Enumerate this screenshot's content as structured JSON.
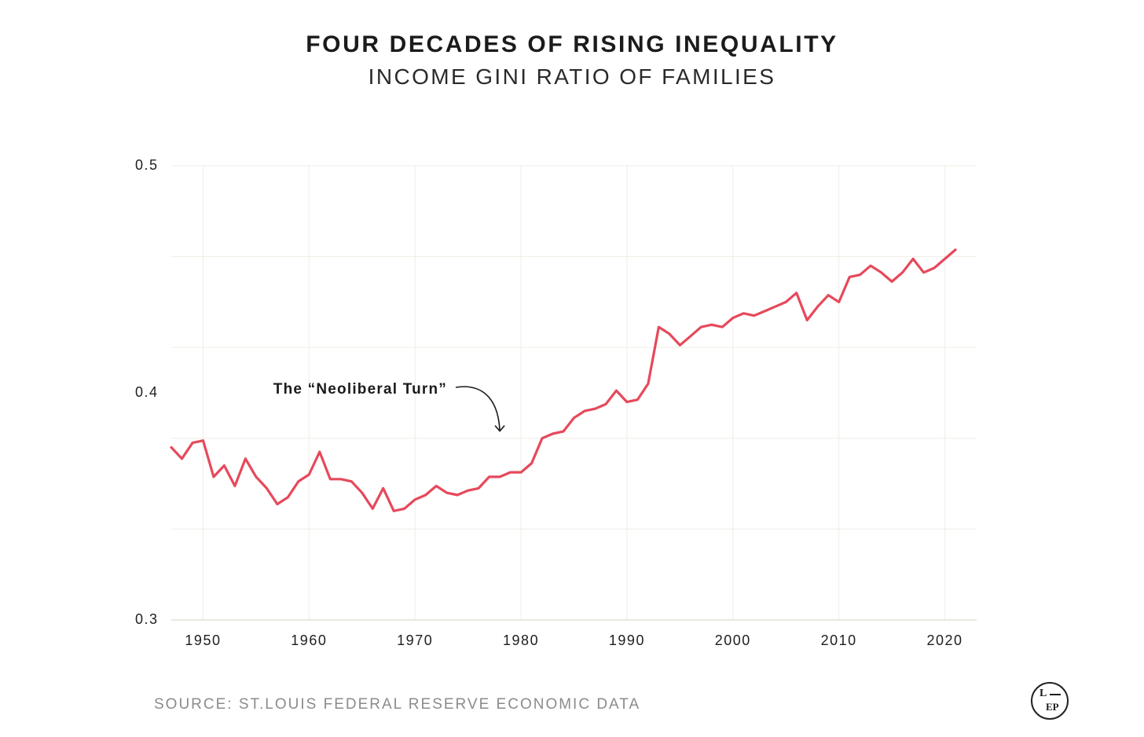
{
  "header": {
    "title": "FOUR DECADES OF RISING INEQUALITY",
    "subtitle": "INCOME GINI RATIO OF FAMILIES"
  },
  "footer": {
    "source": "SOURCE: ST.LOUIS FEDERAL RESERVE ECONOMIC DATA"
  },
  "logo": {
    "top_letter": "L",
    "bottom_letters": "EP"
  },
  "colors": {
    "series_line": "#e6495b",
    "grid": "#efede6",
    "text": "#1e1e1e",
    "source_text": "#8b8b8b"
  },
  "chart_data": {
    "type": "line",
    "title": "FOUR DECADES OF RISING INEQUALITY",
    "subtitle": "INCOME GINI RATIO OF FAMILIES",
    "xlabel": "",
    "ylabel": "",
    "xlim": [
      1947,
      2023
    ],
    "ylim": [
      0.3,
      0.5
    ],
    "x_ticks": [
      1950,
      1960,
      1970,
      1980,
      1990,
      2000,
      2010,
      2020
    ],
    "y_ticks": [
      0.3,
      0.4,
      0.5
    ],
    "y_tick_labels": [
      "0.3",
      "0.4",
      "0.5"
    ],
    "grid": true,
    "annotation": {
      "text": "The “Neoliberal Turn”",
      "x": 1978,
      "y": 0.388
    },
    "series": [
      {
        "x": [
          1947,
          1948,
          1949,
          1950,
          1951,
          1952,
          1953,
          1954,
          1955,
          1956,
          1957,
          1958,
          1959,
          1960,
          1961,
          1962,
          1963,
          1964,
          1965,
          1966,
          1967,
          1968,
          1969,
          1970,
          1971,
          1972,
          1973,
          1974,
          1975,
          1976,
          1977,
          1978,
          1979,
          1980,
          1981,
          1982,
          1983,
          1984,
          1985,
          1986,
          1987,
          1988,
          1989,
          1990,
          1991,
          1992,
          1993,
          1994,
          1995,
          1996,
          1997,
          1998,
          1999,
          2000,
          2001,
          2002,
          2003,
          2004,
          2005,
          2006,
          2007,
          2008,
          2009,
          2010,
          2011,
          2012,
          2013,
          2014,
          2015,
          2016,
          2017,
          2018,
          2019,
          2020,
          2021
        ],
        "values": [
          0.376,
          0.371,
          0.378,
          0.379,
          0.363,
          0.368,
          0.359,
          0.371,
          0.363,
          0.358,
          0.351,
          0.354,
          0.361,
          0.364,
          0.374,
          0.362,
          0.362,
          0.361,
          0.356,
          0.349,
          0.358,
          0.348,
          0.349,
          0.353,
          0.355,
          0.359,
          0.356,
          0.355,
          0.357,
          0.358,
          0.363,
          0.363,
          0.365,
          0.365,
          0.369,
          0.38,
          0.382,
          0.383,
          0.389,
          0.392,
          0.393,
          0.395,
          0.401,
          0.396,
          0.397,
          0.404,
          0.429,
          0.426,
          0.421,
          0.425,
          0.429,
          0.43,
          0.429,
          0.433,
          0.435,
          0.434,
          0.436,
          0.438,
          0.44,
          0.444,
          0.432,
          0.438,
          0.443,
          0.44,
          0.451,
          0.452,
          0.456,
          0.453,
          0.449,
          0.453,
          0.459,
          0.453,
          0.455,
          0.459,
          0.463
        ]
      }
    ]
  }
}
